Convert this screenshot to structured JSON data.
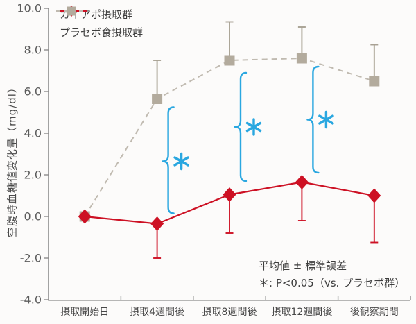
{
  "chart_data": {
    "type": "line",
    "title": "",
    "ylabel": "空腹時血糖値変化量（mg/dl）",
    "xlabel": "",
    "ylim": [
      -4.0,
      10.0
    ],
    "ytick_step": 2.0,
    "ytick_labels": [
      "10.0",
      "8.0",
      "6.0",
      "4.0",
      "2.0",
      "0.0",
      "-2.0",
      "-4.0"
    ],
    "ytick_values": [
      10.0,
      8.0,
      6.0,
      4.0,
      2.0,
      0.0,
      -2.0,
      -4.0
    ],
    "categories": [
      "摂取開始日",
      "摂取4週間後",
      "摂取8週間後",
      "摂取12週間後",
      "後観察期間"
    ],
    "grid": false,
    "legend_position": "top-left",
    "series": [
      {
        "name": "プラセボ食摂取群",
        "marker": "square",
        "line_style": "dashed",
        "color": "#b3ab9d",
        "line_color": "#c0bab0",
        "error_color": "#a8a193",
        "values": [
          0.0,
          5.65,
          7.5,
          7.6,
          6.5
        ],
        "error_to": [
          null,
          7.5,
          9.35,
          9.1,
          8.25
        ],
        "error_dir": "up"
      },
      {
        "name": "カイアポ摂取群",
        "marker": "diamond",
        "line_style": "solid",
        "color": "#cd1124",
        "line_color": "#cd1124",
        "error_color": "#cd1124",
        "values": [
          0.0,
          -0.35,
          1.05,
          1.65,
          1.0
        ],
        "error_to": [
          null,
          -2.0,
          -0.8,
          -0.2,
          -1.25
        ],
        "error_dir": "down"
      }
    ],
    "significance": {
      "symbol": "＊",
      "color": "#2aa7e0",
      "braces": [
        {
          "category_index": 1,
          "top": 5.25,
          "bottom": 0.15,
          "star_y": 2.65
        },
        {
          "category_index": 2,
          "top": 6.9,
          "bottom": 1.7,
          "star_y": 4.3
        },
        {
          "category_index": 3,
          "top": 7.2,
          "bottom": 2.1,
          "star_y": 4.65
        }
      ]
    },
    "annotations": [
      "平均値 ± 標準誤差",
      "＊: P<0.05（vs. プラセボ群）"
    ]
  }
}
